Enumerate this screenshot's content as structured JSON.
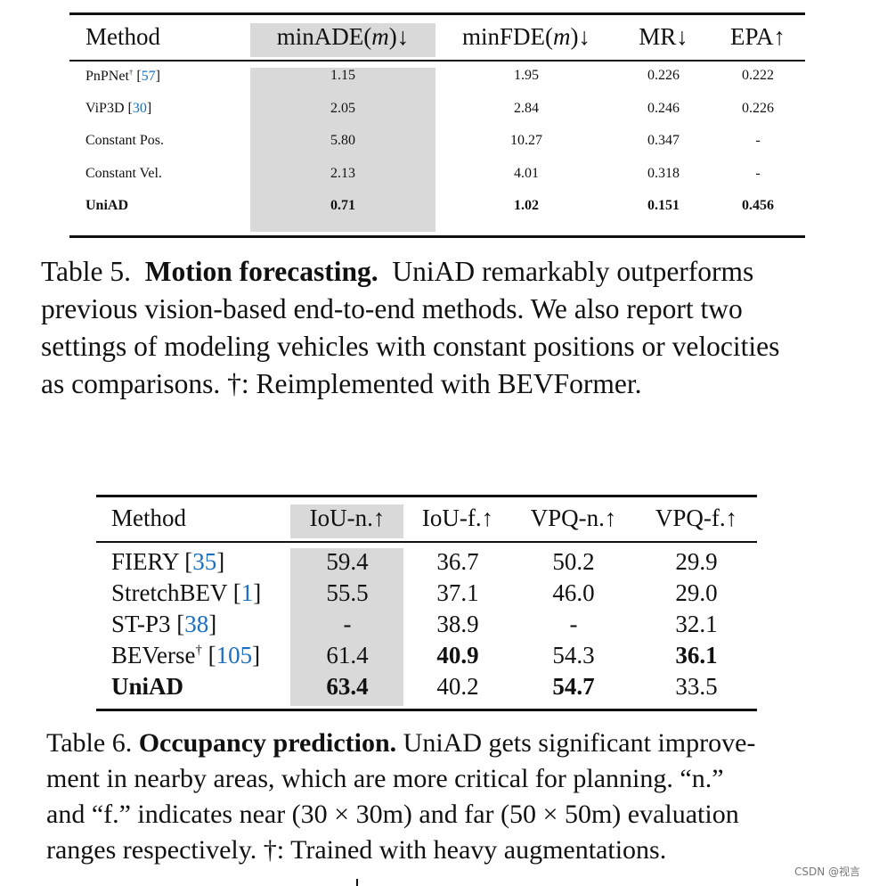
{
  "table5": {
    "header": [
      "Method",
      "minADE(m)↓",
      "minFDE(m)↓",
      "MR↓",
      "EPA↑"
    ],
    "rows": [
      {
        "method": "PnPNet",
        "dagger": "†",
        "ref": "57",
        "v": [
          "1.15",
          "1.95",
          "0.226",
          "0.222"
        ]
      },
      {
        "method": "ViP3D",
        "dagger": "",
        "ref": "30",
        "v": [
          "2.05",
          "2.84",
          "0.246",
          "0.226"
        ]
      },
      {
        "method": "Constant Pos.",
        "dagger": "",
        "ref": "",
        "v": [
          "5.80",
          "10.27",
          "0.347",
          "-"
        ]
      },
      {
        "method": "Constant Vel.",
        "dagger": "",
        "ref": "",
        "v": [
          "2.13",
          "4.01",
          "0.318",
          "-"
        ]
      },
      {
        "method": "UniAD",
        "dagger": "",
        "ref": "",
        "v": [
          "0.71",
          "1.02",
          "0.151",
          "0.456"
        ],
        "bold": true
      }
    ],
    "caption_label": "Table 5.",
    "caption_title": "Motion forecasting.",
    "caption_lines": [
      "UniAD remarkably outperforms",
      "previous vision-based end-to-end methods.  We also report two",
      "settings of modeling vehicles with constant positions or velocities",
      "as comparisons. †: Reimplemented with BEVFormer."
    ]
  },
  "table6": {
    "header": [
      "Method",
      "IoU-n.↑",
      "IoU-f.↑",
      "VPQ-n.↑",
      "VPQ-f.↑"
    ],
    "rows": [
      {
        "method": "FIERY",
        "dagger": "",
        "ref": "35",
        "v": [
          "59.4",
          "36.7",
          "50.2",
          "29.9"
        ],
        "b": []
      },
      {
        "method": "StretchBEV",
        "dagger": "",
        "ref": "1",
        "v": [
          "55.5",
          "37.1",
          "46.0",
          "29.0"
        ],
        "b": []
      },
      {
        "method": "ST-P3",
        "dagger": "",
        "ref": "38",
        "v": [
          "-",
          "38.9",
          "-",
          "32.1"
        ],
        "b": []
      },
      {
        "method": "BEVerse",
        "dagger": "†",
        "ref": "105",
        "v": [
          "61.4",
          "40.9",
          "54.3",
          "36.1"
        ],
        "b": [
          1,
          3
        ]
      },
      {
        "method": "UniAD",
        "dagger": "",
        "ref": "",
        "v": [
          "63.4",
          "40.2",
          "54.7",
          "33.5"
        ],
        "b": [
          0,
          2
        ],
        "boldMethod": true
      }
    ],
    "caption_label": "Table 6.",
    "caption_title": "Occupancy prediction.",
    "caption_lines": [
      "UniAD gets significant improve-",
      "ment in nearby areas, which are more critical for planning.  “n.”",
      "and “f.” indicates near (30 × 30m) and far (50 × 50m) evaluation",
      "ranges respectively. †: Trained with heavy augmentations."
    ]
  },
  "watermark": "CSDN @视言",
  "colors": {
    "highlight": "#d9d9d9",
    "ref": "#1a6fc2"
  }
}
